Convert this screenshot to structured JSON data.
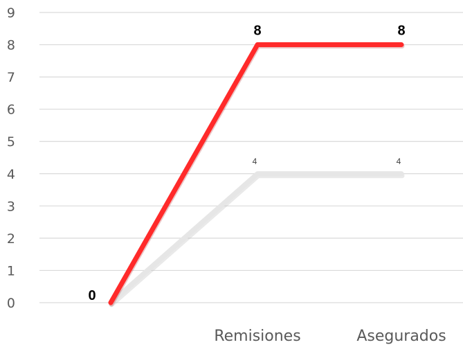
{
  "chart_data": {
    "type": "line",
    "categories": [
      "",
      "Remisiones",
      "Asegurados"
    ],
    "ylim": [
      0,
      9
    ],
    "yticks": [
      "0",
      "1",
      "2",
      "3",
      "4",
      "5",
      "6",
      "7",
      "8",
      "9"
    ],
    "grid": true,
    "legend": "none",
    "series": [
      {
        "values": [
          0,
          8,
          8
        ],
        "data_labels": [
          "0",
          "8",
          "8"
        ],
        "color": "#ff2a2a",
        "label_style": "bold"
      },
      {
        "values": [
          0,
          4,
          4
        ],
        "data_labels": [
          "",
          "4",
          "4"
        ],
        "color": "#e6e6e6",
        "label_style": "small"
      }
    ]
  }
}
